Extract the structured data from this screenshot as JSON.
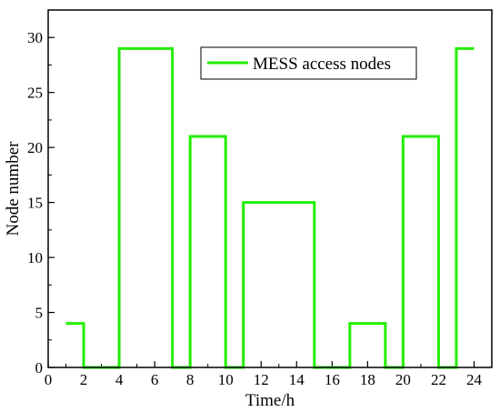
{
  "chart_data": {
    "type": "line",
    "title": "",
    "xlabel": "Time/h",
    "ylabel": "Node number",
    "xlim": [
      0,
      25
    ],
    "ylim": [
      0,
      32.5
    ],
    "xticks": [
      0,
      2,
      4,
      6,
      8,
      10,
      12,
      14,
      16,
      18,
      20,
      22,
      24
    ],
    "yticks": [
      0,
      5,
      10,
      15,
      20,
      25,
      30
    ],
    "grid": false,
    "legend": {
      "position": "top-right",
      "entries": [
        "MESS access nodes"
      ]
    },
    "series": [
      {
        "name": "MESS access nodes",
        "color": "#22ee00",
        "step": "post",
        "x": [
          1,
          2,
          4,
          7,
          8,
          10,
          11,
          15,
          17,
          19,
          20,
          22,
          23,
          24
        ],
        "y": [
          4,
          0,
          29,
          0,
          21,
          0,
          15,
          0,
          4,
          0,
          21,
          0,
          29,
          29
        ]
      }
    ]
  }
}
